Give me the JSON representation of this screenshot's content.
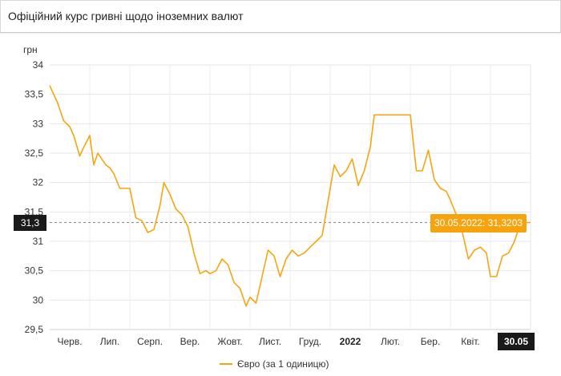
{
  "header": {
    "title": "Офіційний курс гривні щодо іноземних валют"
  },
  "chart_data": {
    "type": "line",
    "ylabel": "грн",
    "ylim": [
      29.5,
      34
    ],
    "yticks": [
      "34",
      "33,5",
      "33",
      "32,5",
      "32",
      "31,5",
      "31",
      "30,5",
      "30",
      "29,5"
    ],
    "ytick_values": [
      34,
      33.5,
      33,
      32.5,
      32,
      31.5,
      31,
      30.5,
      30,
      29.5
    ],
    "xticks": [
      "Черв.",
      "Лип.",
      "Серп.",
      "Вер.",
      "Жовт.",
      "Лист.",
      "Груд.",
      "2022",
      "Лют.",
      "Бер.",
      "Квіт."
    ],
    "xtick_bold": [
      false,
      false,
      false,
      false,
      false,
      false,
      false,
      true,
      false,
      false,
      false
    ],
    "x_months_range": [
      0,
      12
    ],
    "xtick_positions_months": [
      0.5,
      1.5,
      2.5,
      3.5,
      4.5,
      5.5,
      6.5,
      7.5,
      8.5,
      9.5,
      10.5
    ],
    "series": [
      {
        "name": "Євро (за 1 одиницю)",
        "color": "#f5a50f",
        "x_months": [
          0.0,
          0.1,
          0.2,
          0.35,
          0.5,
          0.6,
          0.75,
          0.85,
          1.0,
          1.1,
          1.2,
          1.3,
          1.4,
          1.5,
          1.6,
          1.75,
          1.9,
          2.0,
          2.15,
          2.3,
          2.45,
          2.6,
          2.75,
          2.85,
          3.0,
          3.15,
          3.3,
          3.45,
          3.6,
          3.75,
          3.9,
          4.0,
          4.15,
          4.3,
          4.45,
          4.6,
          4.75,
          4.9,
          5.0,
          5.15,
          5.3,
          5.45,
          5.6,
          5.75,
          5.9,
          6.05,
          6.2,
          6.35,
          6.5,
          6.65,
          6.8,
          6.95,
          7.1,
          7.25,
          7.4,
          7.55,
          7.7,
          7.85,
          8.0,
          8.1,
          8.25,
          8.4,
          8.55,
          8.7,
          8.85,
          9.0,
          9.15,
          9.3,
          9.45,
          9.6,
          9.75,
          9.9,
          10.0,
          10.15,
          10.3,
          10.45,
          10.6,
          10.75,
          10.9,
          11.0,
          11.15,
          11.3,
          11.45,
          11.6,
          11.75,
          11.9,
          12.0
        ],
        "values": [
          33.65,
          33.5,
          33.35,
          33.05,
          32.95,
          32.8,
          32.45,
          32.6,
          32.8,
          32.3,
          32.5,
          32.4,
          32.3,
          32.25,
          32.15,
          31.9,
          31.9,
          31.9,
          31.4,
          31.35,
          31.15,
          31.2,
          31.6,
          32.0,
          31.8,
          31.55,
          31.45,
          31.25,
          30.8,
          30.45,
          30.5,
          30.45,
          30.5,
          30.7,
          30.6,
          30.3,
          30.2,
          29.9,
          30.05,
          29.95,
          30.4,
          30.85,
          30.75,
          30.4,
          30.7,
          30.85,
          30.75,
          30.8,
          30.9,
          31.0,
          31.1,
          31.7,
          32.3,
          32.1,
          32.2,
          32.4,
          31.95,
          32.2,
          32.6,
          33.15,
          33.15,
          33.15,
          33.15,
          33.15,
          33.15,
          33.15,
          32.2,
          32.2,
          32.55,
          32.05,
          31.9,
          31.85,
          31.7,
          31.45,
          31.15,
          30.7,
          30.85,
          30.9,
          30.8,
          30.4,
          30.4,
          30.75,
          30.8,
          31.0,
          31.32,
          31.32,
          31.32
        ]
      }
    ],
    "crosshair_value": "31,3",
    "crosshair_y_value": 31.32,
    "tooltip_text": "30.05.2022: 31,3203",
    "x_axis_label_active": "30.05",
    "legend_placement": "bottom-center",
    "grid": true
  }
}
